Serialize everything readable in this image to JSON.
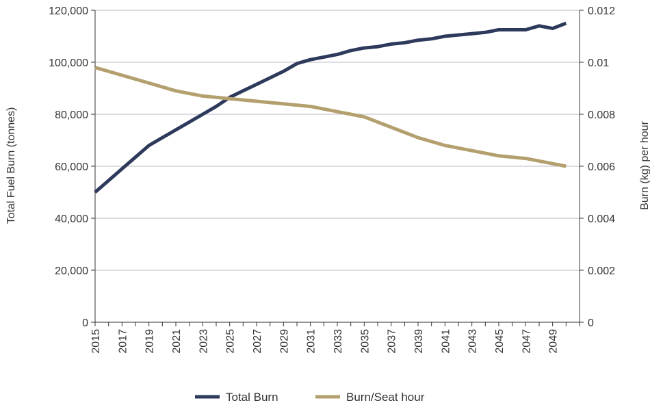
{
  "chart_data": {
    "type": "line",
    "title": "",
    "xlabel": "",
    "y_left_label": "Total Fuel Burn (tonnes)",
    "y_right_label": "Burn (kg) per hour",
    "x_ticks": [
      "2015",
      "2017",
      "2019",
      "2021",
      "2023",
      "2025",
      "2027",
      "2029",
      "2031",
      "2033",
      "2035",
      "2037",
      "2039",
      "2041",
      "2043",
      "2045",
      "2047",
      "2049"
    ],
    "y_left_ticks": [
      "0",
      "20,000",
      "40,000",
      "60,000",
      "80,000",
      "100,000",
      "120,000"
    ],
    "y_right_ticks": [
      "0",
      "0.002",
      "0.004",
      "0.006",
      "0.008",
      "0.01",
      "0.012"
    ],
    "y_left_lim": [
      0,
      120000
    ],
    "y_right_lim": [
      0,
      0.012
    ],
    "x_lim": [
      2015,
      2051
    ],
    "grid": "horizontal",
    "legend_position": "bottom",
    "colors": {
      "total_burn": "#2e3a5c",
      "burn_seat_hour": "#b4a06e",
      "grid": "#b8b8c4",
      "axis": "#333333"
    },
    "series": [
      {
        "name": "Total Burn",
        "axis": "left",
        "x": [
          2015,
          2016,
          2017,
          2018,
          2019,
          2020,
          2021,
          2022,
          2023,
          2024,
          2025,
          2026,
          2027,
          2028,
          2029,
          2030,
          2031,
          2032,
          2033,
          2034,
          2035,
          2036,
          2037,
          2038,
          2039,
          2040,
          2041,
          2042,
          2043,
          2044,
          2045,
          2046,
          2047,
          2048,
          2049,
          2050
        ],
        "values": [
          50000,
          54500,
          59000,
          63500,
          68000,
          71000,
          74000,
          77000,
          80000,
          83000,
          86500,
          89000,
          91500,
          94000,
          96500,
          99500,
          101000,
          102000,
          103000,
          104500,
          105500,
          106000,
          107000,
          107500,
          108500,
          109000,
          110000,
          110500,
          111000,
          111500,
          112500,
          112500,
          112500,
          114000,
          113000,
          115000
        ]
      },
      {
        "name": "Burn/Seat hour",
        "axis": "right",
        "x": [
          2015,
          2017,
          2019,
          2021,
          2023,
          2025,
          2027,
          2029,
          2031,
          2033,
          2035,
          2037,
          2039,
          2041,
          2043,
          2045,
          2047,
          2049,
          2050
        ],
        "values": [
          0.0098,
          0.0095,
          0.0092,
          0.0089,
          0.0087,
          0.0086,
          0.0085,
          0.0084,
          0.0083,
          0.0081,
          0.0079,
          0.0075,
          0.0071,
          0.0068,
          0.0066,
          0.0064,
          0.0063,
          0.0061,
          0.006
        ]
      }
    ]
  }
}
